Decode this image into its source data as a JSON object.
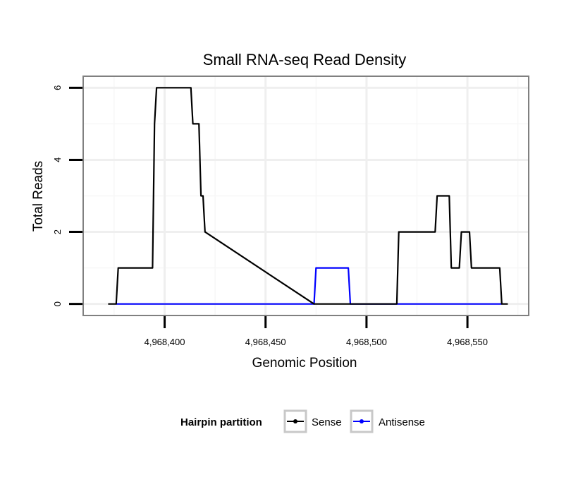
{
  "chart_data": {
    "type": "line",
    "title": "Small RNA-seq Read Density",
    "xlabel": "Genomic Position",
    "ylabel": "Total Reads",
    "xlim": [
      4968360,
      4968580
    ],
    "ylim": [
      -0.3,
      6.3
    ],
    "x_ticks": [
      4968400,
      4968450,
      4968500,
      4968550
    ],
    "x_tick_labels": [
      "4,968,400",
      "4,968,450",
      "4,968,500",
      "4,968,550"
    ],
    "y_ticks": [
      0,
      2,
      4,
      6
    ],
    "y_tick_labels": [
      "0",
      "2",
      "4",
      "6"
    ],
    "grid": true,
    "legend": {
      "title": "Hairpin partition",
      "position": "bottom",
      "entries": [
        "Sense",
        "Antisense"
      ]
    },
    "series": [
      {
        "name": "Sense",
        "color": "#000000",
        "x": [
          4968372,
          4968376,
          4968377,
          4968394,
          4968395,
          4968396,
          4968413,
          4968414,
          4968417,
          4968418,
          4968419,
          4968420,
          4968474,
          4968491,
          4968515,
          4968516,
          4968534,
          4968535,
          4968541,
          4968542,
          4968546,
          4968547,
          4968551,
          4968552,
          4968566,
          4968567,
          4968570
        ],
        "y": [
          0,
          0,
          1,
          1,
          5,
          6,
          6,
          5,
          5,
          3,
          3,
          2,
          0,
          0,
          0,
          2,
          2,
          3,
          3,
          1,
          1,
          2,
          2,
          1,
          1,
          0,
          0
        ]
      },
      {
        "name": "Antisense",
        "color": "#0000ff",
        "x": [
          4968376,
          4968474,
          4968475,
          4968491,
          4968492,
          4968567
        ],
        "y": [
          0,
          0,
          1,
          1,
          0,
          0
        ]
      }
    ]
  }
}
